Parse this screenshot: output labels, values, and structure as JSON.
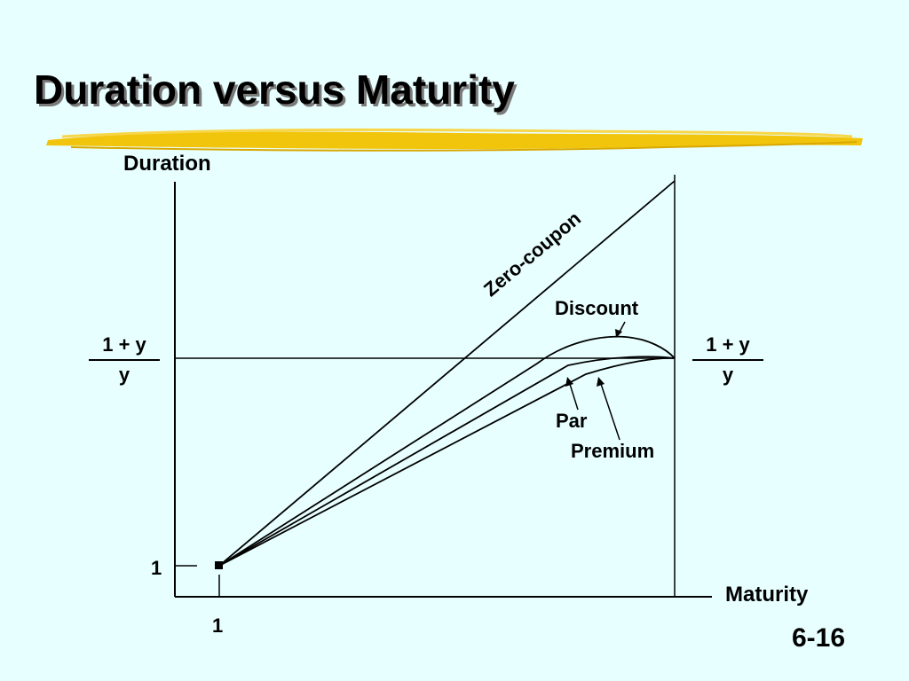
{
  "title": "Duration versus Maturity",
  "axes": {
    "y_label": "Duration",
    "x_label": "Maturity",
    "y_tick": "1",
    "x_tick": "1"
  },
  "asymptote": {
    "left": {
      "numerator": "1 + y",
      "denominator": "y"
    },
    "right": {
      "numerator": "1 + y",
      "denominator": "y"
    }
  },
  "curves": {
    "zero_coupon": "Zero-coupon",
    "discount": "Discount",
    "par": "Par",
    "premium": "Premium"
  },
  "page_number": "6-16",
  "colors": {
    "background": "#e8ffff",
    "highlight": "#f2c200"
  }
}
